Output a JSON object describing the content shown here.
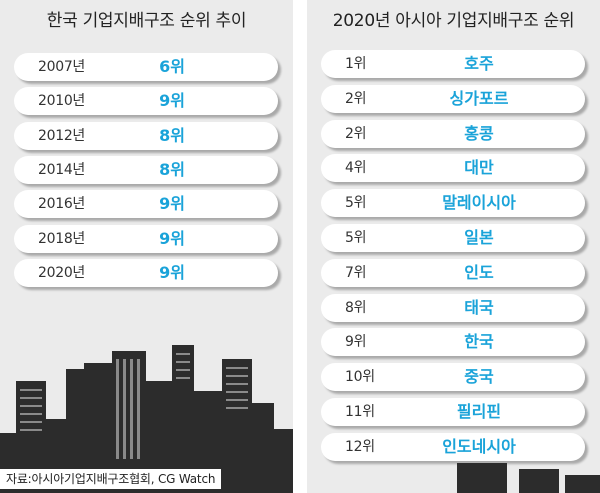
{
  "left": {
    "title": "한국 기업지배구조 순위 추이",
    "rows": [
      {
        "year": "2007년",
        "rank": "6위"
      },
      {
        "year": "2010년",
        "rank": "9위"
      },
      {
        "year": "2012년",
        "rank": "8위"
      },
      {
        "year": "2014년",
        "rank": "8위"
      },
      {
        "year": "2016년",
        "rank": "9위"
      },
      {
        "year": "2018년",
        "rank": "9위"
      },
      {
        "year": "2020년",
        "rank": "9위"
      }
    ]
  },
  "right": {
    "title": "2020년 아시아 기업지배구조 순위",
    "rows": [
      {
        "rank": "1위",
        "country": "호주"
      },
      {
        "rank": "2위",
        "country": "싱가포르"
      },
      {
        "rank": "2위",
        "country": "홍콩"
      },
      {
        "rank": "4위",
        "country": "대만"
      },
      {
        "rank": "5위",
        "country": "말레이시아"
      },
      {
        "rank": "5위",
        "country": "일본"
      },
      {
        "rank": "7위",
        "country": "인도"
      },
      {
        "rank": "8위",
        "country": "태국"
      },
      {
        "rank": "9위",
        "country": "한국"
      },
      {
        "rank": "10위",
        "country": "중국"
      },
      {
        "rank": "11위",
        "country": "필리핀"
      },
      {
        "rank": "12위",
        "country": "인도네시아"
      }
    ]
  },
  "source": "자료:아시아기업지배구조협회, CG Watch",
  "colors": {
    "value_text": "#1aa3d9",
    "panel": "#ebebeb",
    "buildings": "#2c2c2c"
  },
  "chart_data": [
    {
      "type": "table",
      "title": "한국 기업지배구조 순위 추이",
      "categories": [
        "2007년",
        "2010년",
        "2012년",
        "2014년",
        "2016년",
        "2018년",
        "2020년"
      ],
      "values": [
        6,
        9,
        8,
        8,
        9,
        9,
        9
      ]
    },
    {
      "type": "table",
      "title": "2020년 아시아 기업지배구조 순위",
      "categories": [
        "호주",
        "싱가포르",
        "홍콩",
        "대만",
        "말레이시아",
        "일본",
        "인도",
        "태국",
        "한국",
        "중국",
        "필리핀",
        "인도네시아"
      ],
      "values": [
        1,
        2,
        2,
        4,
        5,
        5,
        7,
        8,
        9,
        10,
        11,
        12
      ]
    }
  ]
}
